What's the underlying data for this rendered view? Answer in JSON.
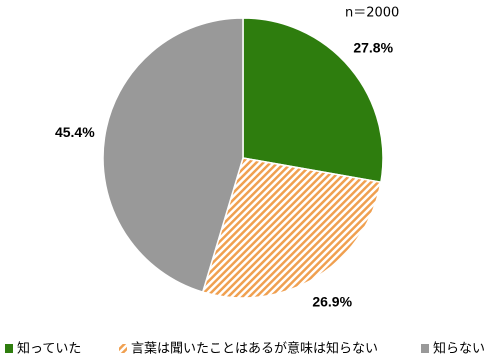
{
  "chart_data": {
    "type": "pie",
    "annotation": "n＝2000",
    "categories": [
      "知っていた",
      "言葉は聞いたことはあるが意味は知らない",
      "知らない"
    ],
    "values": [
      27.8,
      26.9,
      45.4
    ],
    "value_labels": [
      "27.8%",
      "26.9%",
      "45.4%"
    ],
    "colors": [
      "#2e7d0e",
      "#f0a050",
      "#999999"
    ],
    "hatch": [
      false,
      true,
      false
    ],
    "legend": "bottom"
  }
}
